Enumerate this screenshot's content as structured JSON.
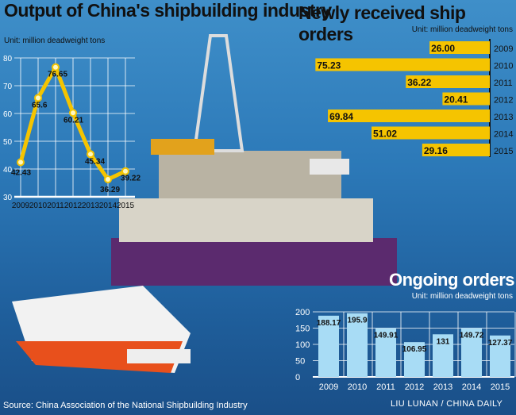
{
  "chart_data": [
    {
      "type": "line",
      "title": "Output of China's shipbuilding industry",
      "unit": "Unit: million deadweight tons",
      "categories": [
        "2009",
        "2010",
        "2011",
        "2012",
        "2013",
        "2014",
        "2015"
      ],
      "values": [
        42.43,
        65.6,
        76.65,
        60.21,
        45.34,
        36.29,
        39.22
      ],
      "value_labels": [
        "42.43",
        "65.6",
        "76.65",
        "60.21",
        "45.34",
        "36.29",
        "39.22"
      ],
      "ylim": [
        30,
        80
      ],
      "yticks": [
        "30",
        "40",
        "50",
        "60",
        "70",
        "80"
      ],
      "grid": true,
      "color": "#f5c400"
    },
    {
      "type": "bar",
      "orientation": "horizontal",
      "title": "Newly received ship orders",
      "unit": "Unit: million deadweight tons",
      "categories": [
        "2009",
        "2010",
        "2011",
        "2012",
        "2013",
        "2014",
        "2015"
      ],
      "values": [
        26.0,
        75.23,
        36.22,
        20.41,
        69.84,
        51.02,
        29.16
      ],
      "value_labels": [
        "26.00",
        "75.23",
        "36.22",
        "20.41",
        "69.84",
        "51.02",
        "29.16"
      ],
      "color": "#f5c400"
    },
    {
      "type": "bar",
      "title": "Ongoing orders",
      "unit": "Unit: million deadweight tons",
      "categories": [
        "2009",
        "2010",
        "2011",
        "2012",
        "2013",
        "2014",
        "2015"
      ],
      "values": [
        188.17,
        195.9,
        149.91,
        106.95,
        131,
        149.72,
        127.37
      ],
      "value_labels": [
        "188.17",
        "195.9",
        "149.91",
        "106.95",
        "131",
        "149.72",
        "127.37"
      ],
      "ylim": [
        0,
        200
      ],
      "yticks": [
        "0",
        "50",
        "100",
        "150",
        "200"
      ],
      "grid": true,
      "color": "#a8dcf5"
    }
  ],
  "footer": {
    "source": "Source: China Association of the National Shipbuilding Industry",
    "credit": "LIU LUNAN / CHINA DAILY"
  }
}
